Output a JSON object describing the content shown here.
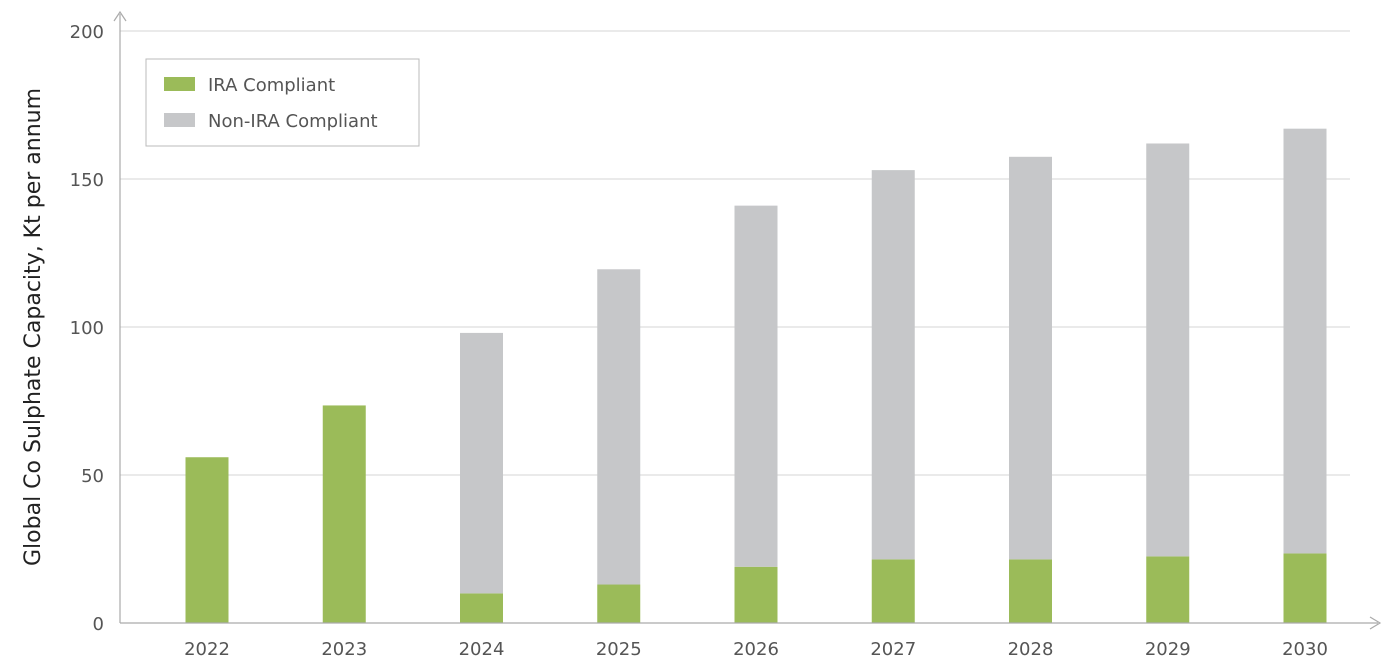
{
  "chart_data": {
    "type": "bar",
    "stacked": true,
    "title": "",
    "xlabel": "",
    "ylabel": "Global Co Sulphate Capacity, Kt per annum",
    "categories": [
      "2022",
      "2023",
      "2024",
      "2025",
      "2026",
      "2027",
      "2028",
      "2029",
      "2030"
    ],
    "series": [
      {
        "name": "IRA Compliant",
        "color": "#9bbb59",
        "values": [
          56,
          73.5,
          10,
          13,
          19,
          21.5,
          21.5,
          22.5,
          23.5
        ]
      },
      {
        "name": "Non-IRA Compliant",
        "color": "#c6c7c9",
        "values": [
          0,
          0,
          88,
          106.5,
          122,
          131.5,
          136,
          139.5,
          143.5
        ]
      }
    ],
    "ylim": [
      0,
      200
    ],
    "yticks": [
      0,
      50,
      100,
      150,
      200
    ],
    "grid": true,
    "legend": "top-left"
  }
}
